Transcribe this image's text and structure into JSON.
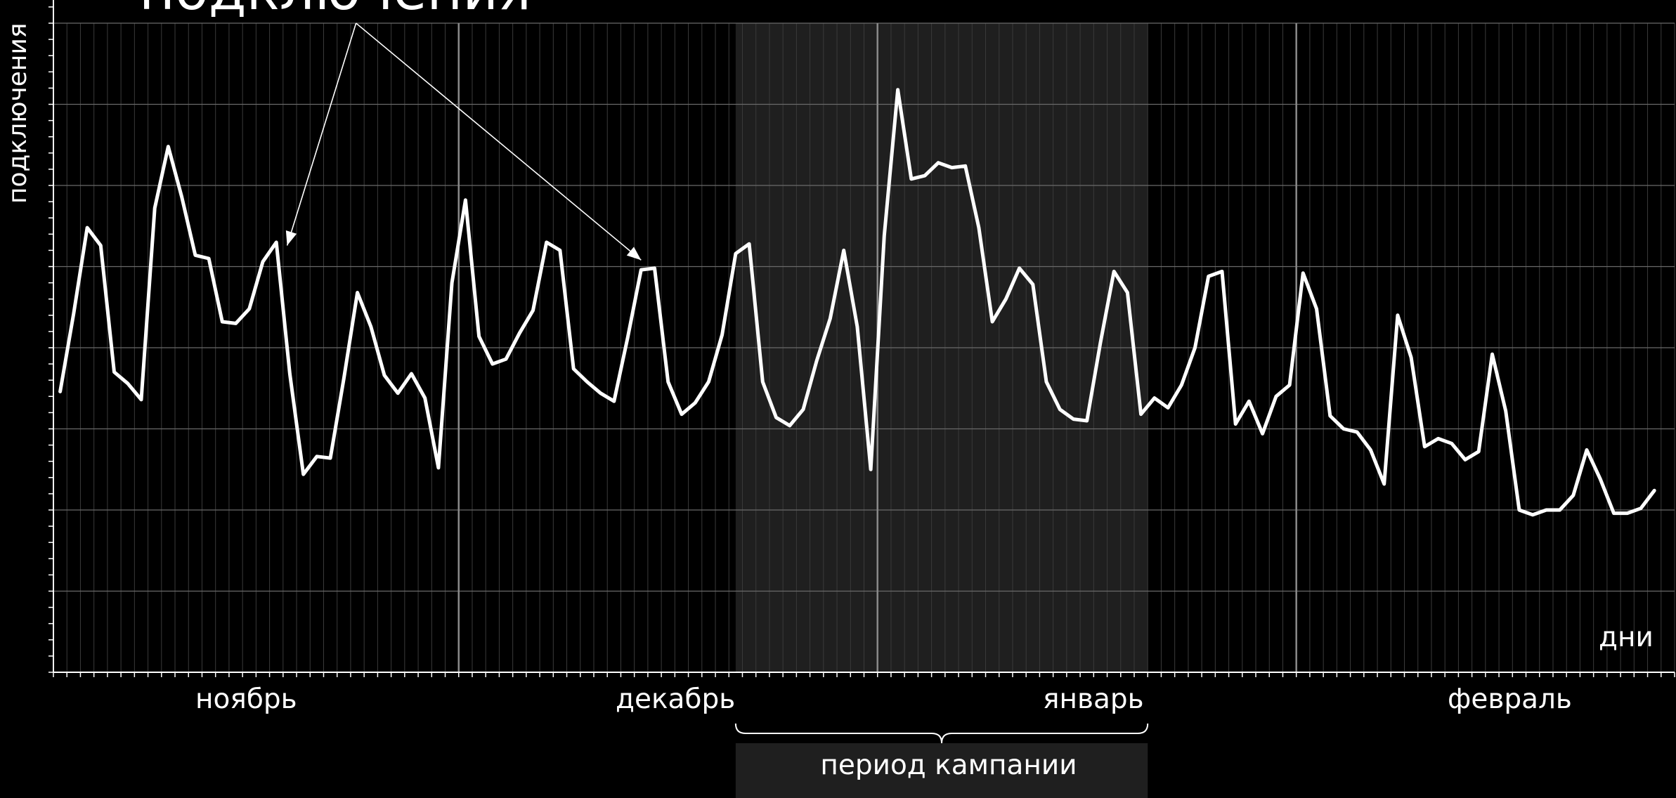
{
  "chart_data": {
    "type": "line",
    "title": "подключения",
    "xlabel": "дни",
    "ylabel": "подключения",
    "months": [
      {
        "label": "ноябрь",
        "start_day": 0,
        "days": 30
      },
      {
        "label": "декабрь",
        "start_day": 30,
        "days": 31
      },
      {
        "label": "январь",
        "start_day": 61,
        "days": 31
      },
      {
        "label": "февраль",
        "start_day": 92,
        "days": 28
      }
    ],
    "highlight": {
      "label": "период кампании",
      "start_day": 50.5,
      "end_day": 81
    },
    "series": [
      {
        "values": [
          47.3,
          52.1,
          57.4,
          56.3,
          48.5,
          47.8,
          46.8,
          58.6,
          62.4,
          59.3,
          55.7,
          55.5,
          51.6,
          51.5,
          52.4,
          55.3,
          56.5,
          48.4,
          42.2,
          43.3,
          43.2,
          48.1,
          53.4,
          51.3,
          48.3,
          47.2,
          48.4,
          46.9,
          42.6,
          54.0,
          59.1,
          50.7,
          49.0,
          49.3,
          50.9,
          52.3,
          56.5,
          56.0,
          48.7,
          47.9,
          47.2,
          46.7,
          50.6,
          54.8,
          54.9,
          47.9,
          45.9,
          46.6,
          47.9,
          50.8,
          55.8,
          56.4,
          47.9,
          45.7,
          45.2,
          46.2,
          49.2,
          51.8,
          56.0,
          51.3,
          42.5,
          56.9,
          65.9,
          60.4,
          60.6,
          61.4,
          61.1,
          61.2,
          57.4,
          51.6,
          53.0,
          54.9,
          53.9,
          47.9,
          46.2,
          45.6,
          45.5,
          50.3,
          54.7,
          53.4,
          45.9,
          46.9,
          46.3,
          47.7,
          50.0,
          54.4,
          54.7,
          45.3,
          46.7,
          44.7,
          47.0,
          47.7,
          54.6,
          52.4,
          45.8,
          45.0,
          44.8,
          43.7,
          41.6,
          52.0,
          49.4,
          43.9,
          44.4,
          44.1,
          43.1,
          43.6,
          49.6,
          46.1,
          40.0,
          39.7,
          40.0,
          40.0,
          40.9,
          43.7,
          41.9,
          39.8,
          39.8,
          40.1,
          41.2
        ]
      }
    ],
    "ylim": [
      30,
      70
    ],
    "grid": true,
    "annotation_arrows": 2
  }
}
